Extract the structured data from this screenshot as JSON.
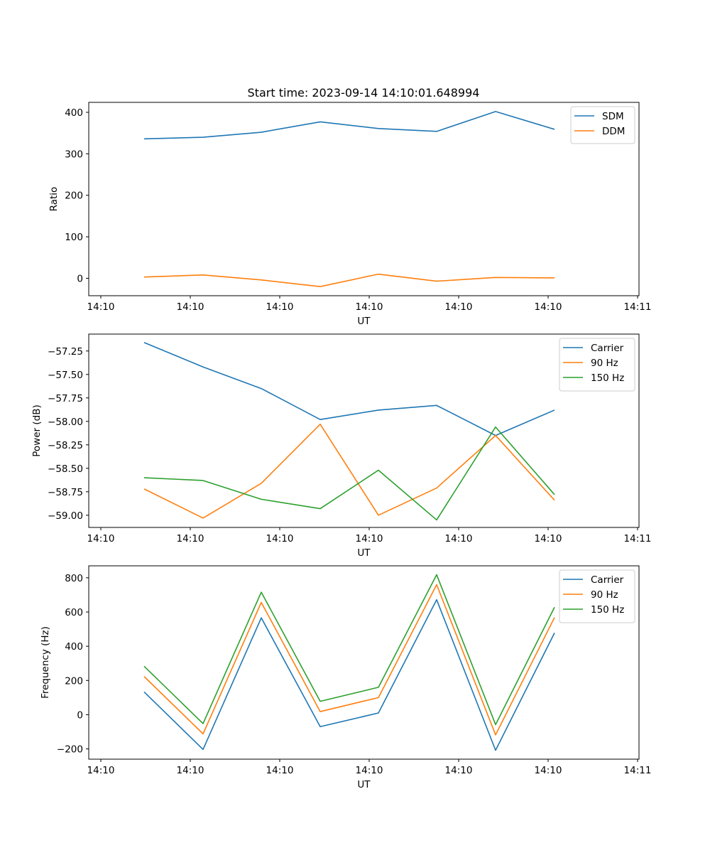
{
  "chart_data": [
    {
      "type": "line",
      "title": "Start time: 2023-09-14 14:10:01.648994",
      "xlabel": "UT",
      "ylabel": "Ratio",
      "x_tick_labels": [
        "14:10",
        "14:10",
        "14:10",
        "14:10",
        "14:10",
        "14:10",
        "14:11"
      ],
      "y_ticks": [
        0,
        100,
        200,
        300,
        400
      ],
      "y_tick_labels": [
        "0",
        "100",
        "200",
        "300",
        "400"
      ],
      "ylim": [
        -42,
        424
      ],
      "grid": false,
      "legend_position": "top-right",
      "series": [
        {
          "name": "SDM",
          "color": "#1f77b4",
          "values": [
            336,
            340,
            352,
            377,
            361,
            354,
            402,
            359
          ]
        },
        {
          "name": "DDM",
          "color": "#ff7f0e",
          "values": [
            3,
            8,
            -4,
            -20,
            10,
            -7,
            2,
            1
          ]
        }
      ]
    },
    {
      "type": "line",
      "title": "",
      "xlabel": "UT",
      "ylabel": "Power (dB)",
      "x_tick_labels": [
        "14:10",
        "14:10",
        "14:10",
        "14:10",
        "14:10",
        "14:10",
        "14:11"
      ],
      "y_ticks": [
        -57.25,
        -57.5,
        -57.75,
        -58.0,
        -58.25,
        -58.5,
        -58.75,
        -59.0
      ],
      "y_tick_labels": [
        "−57.25",
        "−57.50",
        "−57.75",
        "−58.00",
        "−58.25",
        "−58.50",
        "−58.75",
        "−59.00"
      ],
      "ylim": [
        -59.13,
        -57.07
      ],
      "grid": false,
      "legend_position": "top-right",
      "series": [
        {
          "name": "Carrier",
          "color": "#1f77b4",
          "values": [
            -57.16,
            -57.42,
            -57.65,
            -57.98,
            -57.88,
            -57.83,
            -58.15,
            -57.88
          ]
        },
        {
          "name": "90 Hz",
          "color": "#ff7f0e",
          "values": [
            -58.72,
            -59.03,
            -58.66,
            -58.03,
            -59.0,
            -58.71,
            -58.15,
            -58.84
          ]
        },
        {
          "name": "150 Hz",
          "color": "#2ca02c",
          "values": [
            -58.6,
            -58.63,
            -58.83,
            -58.93,
            -58.52,
            -59.05,
            -58.06,
            -58.78
          ]
        }
      ]
    },
    {
      "type": "line",
      "title": "",
      "xlabel": "UT",
      "ylabel": "Frequency (Hz)",
      "x_tick_labels": [
        "14:10",
        "14:10",
        "14:10",
        "14:10",
        "14:10",
        "14:10",
        "14:11"
      ],
      "y_ticks": [
        -200,
        0,
        200,
        400,
        600,
        800
      ],
      "y_tick_labels": [
        "−200",
        "0",
        "200",
        "400",
        "600",
        "800"
      ],
      "ylim": [
        -260,
        870
      ],
      "grid": false,
      "legend_position": "top-right",
      "series": [
        {
          "name": "Carrier",
          "color": "#1f77b4",
          "values": [
            133,
            -203,
            566,
            -70,
            10,
            672,
            -208,
            478
          ]
        },
        {
          "name": "90 Hz",
          "color": "#ff7f0e",
          "values": [
            223,
            -112,
            656,
            18,
            100,
            760,
            -118,
            568
          ]
        },
        {
          "name": "150 Hz",
          "color": "#2ca02c",
          "values": [
            283,
            -52,
            716,
            78,
            160,
            818,
            -58,
            628
          ]
        }
      ]
    }
  ]
}
